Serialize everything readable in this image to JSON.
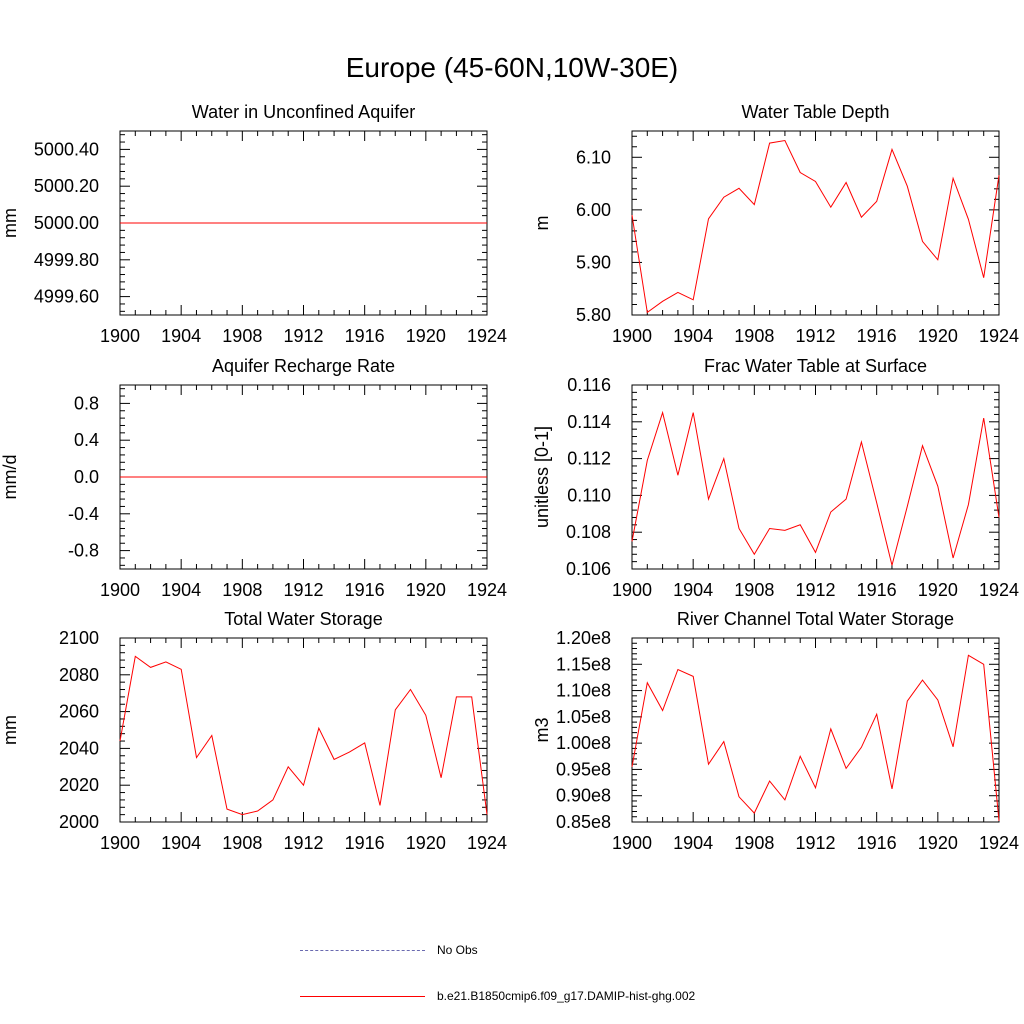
{
  "title": "Europe (45-60N,10W-30E)",
  "colors": {
    "series": "#ff0000",
    "obs": "#6a6ab0",
    "axis": "#000000"
  },
  "legend": {
    "obs_label": "No Obs",
    "model_label": "b.e21.B1850cmip6.f09_g17.DAMIP-hist-ghg.002"
  },
  "chart_data": [
    {
      "type": "line",
      "title": "Water in Unconfined Aquifer",
      "ylabel": "mm",
      "xlim": [
        1900,
        1924
      ],
      "ylim": [
        4999.5,
        5000.5
      ],
      "xticks": [
        1900,
        1904,
        1908,
        1912,
        1916,
        1920,
        1924
      ],
      "yticks": [
        4999.6,
        4999.8,
        5000.0,
        5000.2,
        5000.4
      ],
      "ytick_labels": [
        "4999.60",
        "4999.80",
        "5000.00",
        "5000.20",
        "5000.40"
      ],
      "x": [
        1900,
        1924
      ],
      "values": [
        5000.0,
        5000.0
      ]
    },
    {
      "type": "line",
      "title": "Water Table Depth",
      "ylabel": "m",
      "xlim": [
        1900,
        1924
      ],
      "ylim": [
        5.8,
        6.15
      ],
      "xticks": [
        1900,
        1904,
        1908,
        1912,
        1916,
        1920,
        1924
      ],
      "yticks": [
        5.8,
        5.9,
        6.0,
        6.1
      ],
      "ytick_labels": [
        "5.80",
        "5.90",
        "6.00",
        "6.10"
      ],
      "x": [
        1900,
        1901,
        1902,
        1903,
        1904,
        1905,
        1906,
        1907,
        1908,
        1909,
        1910,
        1911,
        1912,
        1913,
        1914,
        1915,
        1916,
        1917,
        1918,
        1919,
        1920,
        1921,
        1922,
        1923,
        1924
      ],
      "values": [
        5.99,
        5.805,
        5.826,
        5.843,
        5.829,
        5.983,
        6.024,
        6.041,
        6.01,
        6.127,
        6.132,
        6.071,
        6.054,
        6.005,
        6.052,
        5.986,
        6.016,
        6.115,
        6.045,
        5.94,
        5.905,
        6.06,
        5.982,
        5.871,
        6.066
      ]
    },
    {
      "type": "line",
      "title": "Aquifer Recharge Rate",
      "ylabel": "mm/d",
      "xlim": [
        1900,
        1924
      ],
      "ylim": [
        -1.0,
        1.0
      ],
      "xticks": [
        1900,
        1904,
        1908,
        1912,
        1916,
        1920,
        1924
      ],
      "yticks": [
        -0.8,
        -0.4,
        0.0,
        0.4,
        0.8
      ],
      "ytick_labels": [
        "-0.8",
        "-0.4",
        "0.0",
        "0.4",
        "0.8"
      ],
      "x": [
        1900,
        1924
      ],
      "values": [
        0.0,
        0.0
      ]
    },
    {
      "type": "line",
      "title": "Frac Water Table at Surface",
      "ylabel": "unitless [0-1]",
      "xlim": [
        1900,
        1924
      ],
      "ylim": [
        0.106,
        0.116
      ],
      "xticks": [
        1900,
        1904,
        1908,
        1912,
        1916,
        1920,
        1924
      ],
      "yticks": [
        0.106,
        0.108,
        0.11,
        0.112,
        0.114,
        0.116
      ],
      "ytick_labels": [
        "0.106",
        "0.108",
        "0.110",
        "0.112",
        "0.114",
        "0.116"
      ],
      "x": [
        1900,
        1901,
        1902,
        1903,
        1904,
        1905,
        1906,
        1907,
        1908,
        1909,
        1910,
        1911,
        1912,
        1913,
        1914,
        1915,
        1916,
        1917,
        1918,
        1919,
        1920,
        1921,
        1922,
        1923,
        1924
      ],
      "values": [
        0.1075,
        0.1119,
        0.1145,
        0.1111,
        0.1145,
        0.1098,
        0.112,
        0.1082,
        0.1068,
        0.1082,
        0.1081,
        0.1084,
        0.1069,
        0.1091,
        0.1098,
        0.1129,
        0.1096,
        0.1062,
        0.1094,
        0.1127,
        0.1105,
        0.1066,
        0.1095,
        0.1142,
        0.1088
      ]
    },
    {
      "type": "line",
      "title": "Total Water Storage",
      "ylabel": "mm",
      "xlim": [
        1900,
        1924
      ],
      "ylim": [
        2000,
        2100
      ],
      "xticks": [
        1900,
        1904,
        1908,
        1912,
        1916,
        1920,
        1924
      ],
      "yticks": [
        2000,
        2020,
        2040,
        2060,
        2080,
        2100
      ],
      "ytick_labels": [
        "2000",
        "2020",
        "2040",
        "2060",
        "2080",
        "2100"
      ],
      "x": [
        1900,
        1901,
        1902,
        1903,
        1904,
        1905,
        1906,
        1907,
        1908,
        1909,
        1910,
        1911,
        1912,
        1913,
        1914,
        1915,
        1916,
        1917,
        1918,
        1919,
        1920,
        1921,
        1922,
        1923,
        1924
      ],
      "values": [
        2044,
        2090,
        2084,
        2087,
        2083,
        2035,
        2047,
        2007,
        2004,
        2006,
        2012,
        2030,
        2020,
        2051,
        2034,
        2038,
        2043,
        2009,
        2061,
        2072,
        2058,
        2024,
        2068,
        2068,
        2004
      ]
    },
    {
      "type": "line",
      "title": "River Channel Total Water Storage",
      "ylabel": "m3",
      "xlim": [
        1900,
        1924
      ],
      "ylim": [
        0.85,
        1.2
      ],
      "xticks": [
        1900,
        1904,
        1908,
        1912,
        1916,
        1920,
        1924
      ],
      "yticks": [
        0.85,
        0.9,
        0.95,
        1.0,
        1.05,
        1.1,
        1.15,
        1.2
      ],
      "ytick_labels": [
        "0.85e8",
        "0.90e8",
        "0.95e8",
        "1.00e8",
        "1.05e8",
        "1.10e8",
        "1.15e8",
        "1.20e8"
      ],
      "x": [
        1900,
        1901,
        1902,
        1903,
        1904,
        1905,
        1906,
        1907,
        1908,
        1909,
        1910,
        1911,
        1912,
        1913,
        1914,
        1915,
        1916,
        1917,
        1918,
        1919,
        1920,
        1921,
        1922,
        1923,
        1924
      ],
      "values": [
        0.955,
        1.115,
        1.062,
        1.14,
        1.127,
        0.96,
        1.003,
        0.898,
        0.867,
        0.928,
        0.892,
        0.975,
        0.915,
        1.027,
        0.952,
        0.992,
        1.055,
        0.913,
        1.08,
        1.12,
        1.082,
        0.993,
        1.167,
        1.15,
        0.852
      ]
    }
  ]
}
